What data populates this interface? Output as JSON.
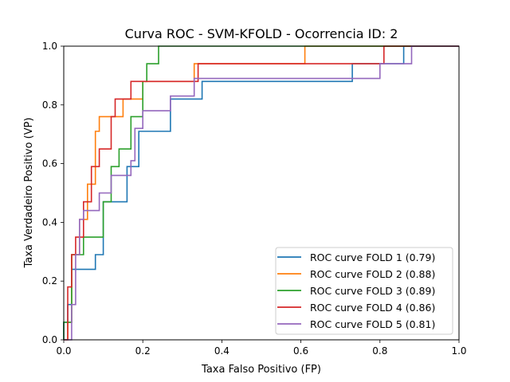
{
  "chart_data": {
    "type": "line",
    "title": "Curva ROC - SVM-KFOLD - Ocorrencia ID: 2",
    "xlabel": "Taxa Falso Positivo (FP)",
    "ylabel": "Taxa Verdadeiro Positivo (VP)",
    "xlim": [
      0.0,
      1.0
    ],
    "ylim": [
      0.0,
      1.0
    ],
    "xticks": [
      "0.0",
      "0.2",
      "0.4",
      "0.6",
      "0.8",
      "1.0"
    ],
    "yticks": [
      "0.0",
      "0.2",
      "0.4",
      "0.6",
      "0.8",
      "1.0"
    ],
    "grid": false,
    "legend_position": "lower-right",
    "series": [
      {
        "name": "ROC curve FOLD 1 (0.79)",
        "color": "#1f77b4",
        "x": [
          0.0,
          0.0,
          0.01,
          0.01,
          0.02,
          0.02,
          0.08,
          0.08,
          0.1,
          0.1,
          0.16,
          0.16,
          0.19,
          0.19,
          0.27,
          0.27,
          0.35,
          0.35,
          0.73,
          0.73,
          0.86,
          0.86,
          1.0
        ],
        "y": [
          0.0,
          0.06,
          0.06,
          0.12,
          0.12,
          0.24,
          0.24,
          0.29,
          0.29,
          0.47,
          0.47,
          0.59,
          0.59,
          0.71,
          0.71,
          0.82,
          0.82,
          0.88,
          0.88,
          0.94,
          0.94,
          1.0,
          1.0
        ]
      },
      {
        "name": "ROC curve FOLD 2 (0.88)",
        "color": "#ff7f0e",
        "x": [
          0.0,
          0.01,
          0.01,
          0.02,
          0.02,
          0.04,
          0.04,
          0.06,
          0.06,
          0.08,
          0.08,
          0.09,
          0.09,
          0.15,
          0.15,
          0.2,
          0.2,
          0.33,
          0.33,
          0.61,
          0.61,
          1.0
        ],
        "y": [
          0.0,
          0.0,
          0.06,
          0.06,
          0.29,
          0.29,
          0.41,
          0.41,
          0.53,
          0.53,
          0.71,
          0.71,
          0.76,
          0.76,
          0.82,
          0.82,
          0.88,
          0.88,
          0.94,
          0.94,
          1.0,
          1.0
        ]
      },
      {
        "name": "ROC curve FOLD 3 (0.89)",
        "color": "#2ca02c",
        "x": [
          0.0,
          0.0,
          0.02,
          0.02,
          0.05,
          0.05,
          0.1,
          0.1,
          0.12,
          0.12,
          0.14,
          0.14,
          0.17,
          0.17,
          0.2,
          0.2,
          0.21,
          0.21,
          0.24,
          0.24,
          1.0
        ],
        "y": [
          0.0,
          0.06,
          0.06,
          0.29,
          0.29,
          0.35,
          0.35,
          0.47,
          0.47,
          0.59,
          0.59,
          0.65,
          0.65,
          0.76,
          0.76,
          0.88,
          0.88,
          0.94,
          0.94,
          1.0,
          1.0
        ]
      },
      {
        "name": "ROC curve FOLD 4 (0.86)",
        "color": "#d62728",
        "x": [
          0.0,
          0.01,
          0.01,
          0.02,
          0.02,
          0.03,
          0.03,
          0.05,
          0.05,
          0.07,
          0.07,
          0.09,
          0.09,
          0.12,
          0.12,
          0.13,
          0.13,
          0.17,
          0.17,
          0.2,
          0.2,
          0.34,
          0.34,
          0.81,
          0.81,
          1.0
        ],
        "y": [
          0.0,
          0.0,
          0.18,
          0.18,
          0.29,
          0.29,
          0.35,
          0.35,
          0.47,
          0.47,
          0.59,
          0.59,
          0.65,
          0.65,
          0.76,
          0.76,
          0.82,
          0.82,
          0.88,
          0.88,
          0.88,
          0.88,
          0.94,
          0.94,
          1.0,
          1.0
        ]
      },
      {
        "name": "ROC curve FOLD 5 (0.81)",
        "color": "#9467bd",
        "x": [
          0.0,
          0.02,
          0.02,
          0.03,
          0.03,
          0.04,
          0.04,
          0.05,
          0.05,
          0.09,
          0.09,
          0.12,
          0.12,
          0.17,
          0.17,
          0.18,
          0.18,
          0.2,
          0.2,
          0.27,
          0.27,
          0.33,
          0.33,
          0.8,
          0.8,
          0.88,
          0.88,
          1.0
        ],
        "y": [
          0.0,
          0.0,
          0.12,
          0.12,
          0.29,
          0.29,
          0.41,
          0.41,
          0.44,
          0.44,
          0.5,
          0.5,
          0.56,
          0.56,
          0.61,
          0.61,
          0.72,
          0.72,
          0.78,
          0.78,
          0.83,
          0.83,
          0.89,
          0.89,
          0.94,
          0.94,
          1.0,
          1.0
        ]
      }
    ]
  }
}
